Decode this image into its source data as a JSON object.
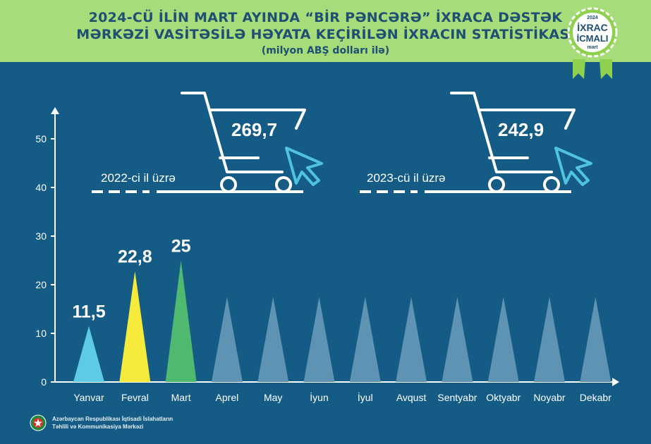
{
  "header": {
    "title_line1": "2024-CÜ İLİN MART AYINDA “BİR PƏNCƏRƏ” İXRACA DƏSTƏK",
    "title_line2": "MƏRKƏZİ VASİTƏSİLƏ HƏYATA KEÇİRİLƏN İXRACIN STATİSTİKASI",
    "subtitle": "(milyon ABŞ dolları ilə)"
  },
  "badge": {
    "year": "2024",
    "line1": "İXRAC",
    "line2": "İCMALI",
    "month": "mart"
  },
  "comparisons": [
    {
      "label": "2022-ci il üzrə",
      "value": "269,7"
    },
    {
      "label": "2023-cü il üzrə",
      "value": "242,9"
    }
  ],
  "footer": {
    "line1": "Azərbaycan Respublikası İqtisadi İslahatların",
    "line2": "Təhlili və Kommunikasiya Mərkəzi"
  },
  "colors": {
    "background": "#145b85",
    "header": "#a6dc7a",
    "title": "#1f4f73",
    "Yanvar": "#5ecbe6",
    "Fevral": "#f6ea3c",
    "Mart": "#4fb96f",
    "placeholder": "#5f93b3"
  },
  "chart_data": {
    "type": "bar",
    "categories": [
      "Yanvar",
      "Fevral",
      "Mart",
      "Aprel",
      "May",
      "İyun",
      "İyul",
      "Avqust",
      "Sentyabr",
      "Oktyabr",
      "Noyabr",
      "Dekabr"
    ],
    "values": [
      11.5,
      22.8,
      25,
      null,
      null,
      null,
      null,
      null,
      null,
      null,
      null,
      null
    ],
    "data_labels": [
      "11,5",
      "22,8",
      "25",
      "",
      "",
      "",
      "",
      "",
      "",
      "",
      "",
      ""
    ],
    "y_ticks": [
      0,
      10,
      20,
      30,
      40,
      50
    ],
    "ylim": [
      0,
      55
    ],
    "title": "",
    "xlabel": "",
    "ylabel": "",
    "grid": false,
    "bar_shape": "triangle"
  }
}
